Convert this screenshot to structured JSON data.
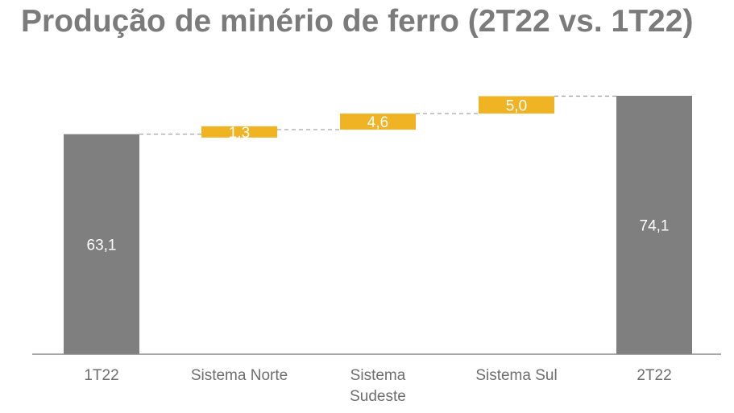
{
  "chart_data": {
    "type": "bar",
    "subtype": "waterfall",
    "title": "Produção de minério de ferro (2T22 vs. 1T22)",
    "categories": [
      "1T22",
      "Sistema Norte",
      "Sistema Sudeste",
      "Sistema Sul",
      "2T22"
    ],
    "category_lines": [
      [
        "1T22"
      ],
      [
        "Sistema Norte"
      ],
      [
        "Sistema",
        "Sudeste"
      ],
      [
        "Sistema Sul"
      ],
      [
        "2T22"
      ]
    ],
    "values": [
      63.1,
      1.3,
      4.6,
      5.0,
      74.1
    ],
    "value_labels": [
      "63,1",
      "1,3",
      "4,6",
      "5,0",
      "74,1"
    ],
    "bar_kind": [
      "total",
      "delta",
      "delta",
      "delta",
      "total"
    ],
    "ylim": [
      0,
      74.1
    ],
    "xlabel": "",
    "ylabel": "",
    "grid": false,
    "connectors": true,
    "colors": {
      "total": "#7f7f7f",
      "delta": "#f0b323",
      "connector": "#a6a6a6",
      "axis": "#8c8c8c",
      "tick_text": "#6e6e6e",
      "label_text": "#ffffff"
    }
  }
}
